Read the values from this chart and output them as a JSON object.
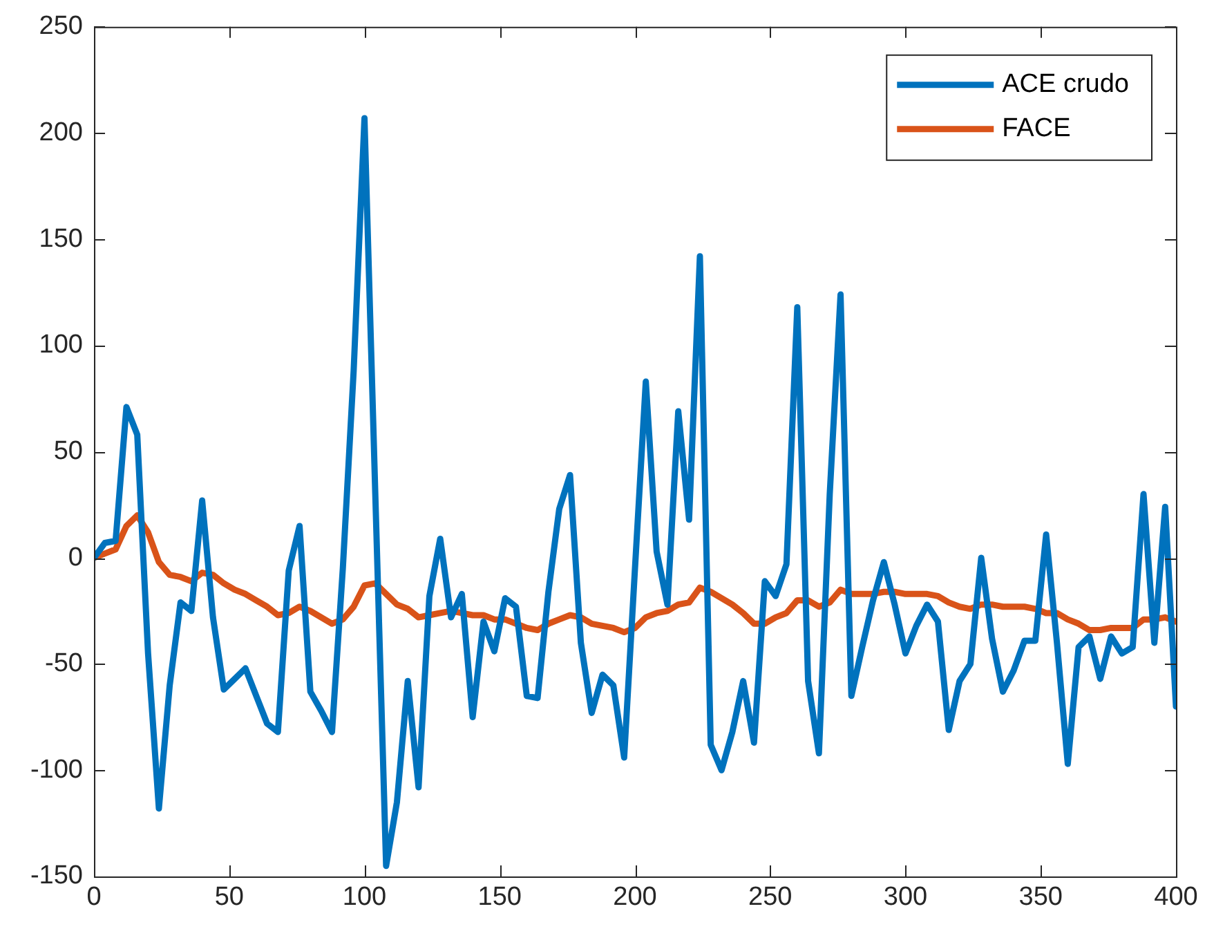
{
  "chart_data": {
    "type": "line",
    "x": [
      0,
      4,
      8,
      12,
      16,
      20,
      24,
      28,
      32,
      36,
      40,
      44,
      48,
      52,
      56,
      60,
      64,
      68,
      72,
      76,
      80,
      84,
      88,
      92,
      96,
      100,
      104,
      108,
      112,
      116,
      120,
      124,
      128,
      132,
      136,
      140,
      144,
      148,
      152,
      156,
      160,
      164,
      168,
      172,
      176,
      180,
      184,
      188,
      192,
      196,
      200,
      204,
      208,
      212,
      216,
      220,
      224,
      228,
      232,
      236,
      240,
      244,
      248,
      252,
      256,
      260,
      264,
      268,
      272,
      276,
      280,
      284,
      288,
      292,
      296,
      300,
      304,
      308,
      312,
      316,
      320,
      324,
      328,
      332,
      336,
      340,
      344,
      348,
      352,
      356,
      360,
      364,
      368,
      372,
      376,
      380,
      384,
      388,
      392,
      396,
      400
    ],
    "series": [
      {
        "name": "ACE crudo",
        "color": "#0072bd",
        "values": [
          0,
          7,
          8,
          71,
          58,
          -45,
          -118,
          -60,
          -21,
          -25,
          27,
          -28,
          -62,
          -57,
          -52,
          -65,
          -78,
          -82,
          -6,
          15,
          -63,
          -72,
          -82,
          -5,
          88,
          207,
          30,
          -145,
          -115,
          -58,
          -108,
          -18,
          9,
          -28,
          -17,
          -75,
          -30,
          -44,
          -19,
          -23,
          -65,
          -66,
          -16,
          23,
          39,
          -40,
          -73,
          -55,
          -60,
          -94,
          -5,
          83,
          3,
          -22,
          69,
          18,
          142,
          -88,
          -100,
          -82,
          -58,
          -87,
          -11,
          -18,
          -3,
          118,
          -58,
          -92,
          30,
          124,
          -65,
          -42,
          -20,
          -2,
          -22,
          -45,
          -32,
          -22,
          -30,
          -81,
          -58,
          -50,
          0,
          -38,
          -63,
          -53,
          -39,
          -39,
          11,
          -40,
          -97,
          -42,
          -37,
          -57,
          -37,
          -45,
          -42,
          30,
          -40,
          24,
          -70
        ]
      },
      {
        "name": "FACE",
        "color": "#d95319",
        "values": [
          0,
          2,
          4,
          15,
          20,
          12,
          -2,
          -8,
          -9,
          -11,
          -7,
          -8,
          -12,
          -15,
          -17,
          -20,
          -23,
          -27,
          -26,
          -23,
          -25,
          -28,
          -31,
          -29,
          -23,
          -13,
          -12,
          -17,
          -22,
          -24,
          -28,
          -27,
          -26,
          -25,
          -26,
          -27,
          -27,
          -29,
          -29,
          -31,
          -33,
          -34,
          -31,
          -29,
          -27,
          -28,
          -31,
          -32,
          -33,
          -35,
          -33,
          -28,
          -26,
          -25,
          -22,
          -21,
          -14,
          -16,
          -19,
          -22,
          -26,
          -31,
          -31,
          -28,
          -26,
          -20,
          -20,
          -23,
          -21,
          -15,
          -17,
          -17,
          -17,
          -16,
          -16,
          -17,
          -17,
          -17,
          -18,
          -21,
          -23,
          -24,
          -22,
          -22,
          -23,
          -23,
          -23,
          -24,
          -26,
          -26,
          -29,
          -31,
          -34,
          -34,
          -33,
          -33,
          -33,
          -29,
          -29,
          -28,
          -30
        ]
      }
    ],
    "xlim": [
      0,
      400
    ],
    "xticks": [
      0,
      50,
      100,
      150,
      200,
      250,
      300,
      350,
      400
    ],
    "ylim": [
      -150,
      250
    ],
    "yticks": [
      -150,
      -100,
      -50,
      0,
      50,
      100,
      150,
      200,
      250
    ],
    "grid": false,
    "legend": "top right",
    "marker": "none",
    "line_style": "solid"
  }
}
